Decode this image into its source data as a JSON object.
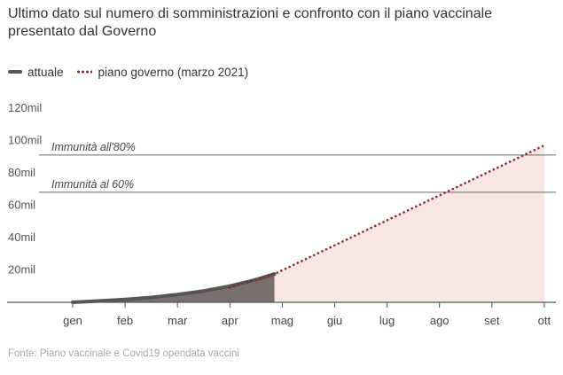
{
  "title": "Ultimo dato sul numero di somministrazioni e confronto con il piano vaccinale presentato dal Governo",
  "source": "Fonte: Piano vaccinale e Covid19 opendata vaccini",
  "legend": [
    {
      "label": "attuale",
      "style": "solid",
      "color": "#555555"
    },
    {
      "label": "piano governo (marzo 2021)",
      "style": "dotted",
      "color": "#8b2a2a"
    }
  ],
  "colors": {
    "actual_fill": "#7a6f6f",
    "actual_line": "#555555",
    "plan_fill": "#f7e6e3",
    "plan_line": "#8b2a2a",
    "grid": "#666666"
  },
  "chart_data": {
    "type": "area",
    "x_unit": "month",
    "categories": [
      "gen",
      "feb",
      "mar",
      "apr",
      "mag",
      "giu",
      "lug",
      "ago",
      "set",
      "ott"
    ],
    "ylim": [
      0,
      120
    ],
    "y_ticks": [
      {
        "value": 20,
        "label": "20mil"
      },
      {
        "value": 40,
        "label": "40mil"
      },
      {
        "value": 60,
        "label": "60mil"
      },
      {
        "value": 80,
        "label": "80mil"
      },
      {
        "value": 100,
        "label": "100mil"
      },
      {
        "value": 120,
        "label": "120mil"
      }
    ],
    "reference_lines": [
      {
        "value": 91,
        "label": "Immunità all'80%"
      },
      {
        "value": 68,
        "label": "Immunità al 60%"
      }
    ],
    "series": [
      {
        "name": "attuale",
        "x": [
          0,
          0.5,
          1.0,
          1.5,
          2.0,
          2.5,
          3.0,
          3.5,
          3.85
        ],
        "y": [
          0,
          0.8,
          1.8,
          3.0,
          4.8,
          7.0,
          10.0,
          14.0,
          17.5
        ]
      },
      {
        "name": "piano governo (marzo 2021)",
        "x": [
          3.0,
          3.85,
          9.0
        ],
        "y": [
          9.0,
          17.5,
          97.0
        ]
      }
    ]
  }
}
